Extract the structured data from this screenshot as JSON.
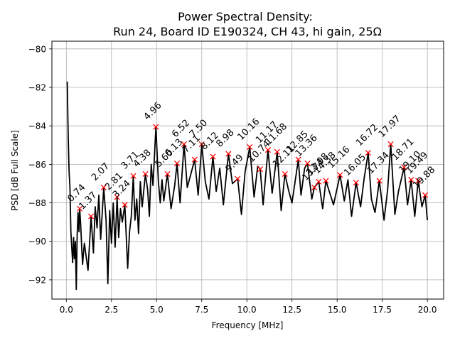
{
  "chart_data": {
    "type": "line",
    "title": "Power Spectral Density:",
    "subtitle": "Run 24, Board ID E190324, CH 43, hi gain, 25Ω",
    "xlabel": "Frequency [MHz]",
    "ylabel": "PSD [dB Full Scale]",
    "xlim": [
      -0.8,
      20.9
    ],
    "ylim": [
      -93.0,
      -79.6
    ],
    "xticks": [
      0.0,
      2.5,
      5.0,
      7.5,
      10.0,
      12.5,
      15.0,
      17.5,
      20.0
    ],
    "xtick_labels": [
      "0.0",
      "2.5",
      "5.0",
      "7.5",
      "10.0",
      "12.5",
      "15.0",
      "17.5",
      "20.0"
    ],
    "yticks": [
      -92,
      -90,
      -88,
      -86,
      -84,
      -82,
      -80
    ],
    "ytick_labels": [
      "−92",
      "−90",
      "−88",
      "−86",
      "−84",
      "−82",
      "−80"
    ],
    "grid": true,
    "line_color": "#000000",
    "marker_color": "#ff0000",
    "series": [
      {
        "x": [
          0.05,
          0.1,
          0.15,
          0.2,
          0.25,
          0.3,
          0.35,
          0.4,
          0.45,
          0.5,
          0.55,
          0.6,
          0.65,
          0.7,
          0.74,
          0.8,
          0.85,
          0.9,
          0.95,
          1.0,
          1.1,
          1.2,
          1.37,
          1.5,
          1.6,
          1.7,
          1.8,
          1.9,
          2.07,
          2.2,
          2.3,
          2.4,
          2.5,
          2.6,
          2.7,
          2.81,
          2.9,
          3.0,
          3.1,
          3.24,
          3.4,
          3.5,
          3.6,
          3.71,
          3.8,
          3.9,
          4.0,
          4.1,
          4.2,
          4.38,
          4.5,
          4.6,
          4.7,
          4.8,
          4.96,
          5.1,
          5.2,
          5.3,
          5.4,
          5.6,
          5.8,
          6.0,
          6.13,
          6.3,
          6.52,
          6.7,
          6.9,
          7.11,
          7.3,
          7.5,
          7.7,
          7.9,
          8.12,
          8.3,
          8.5,
          8.7,
          8.98,
          9.2,
          9.49,
          9.7,
          9.9,
          10.16,
          10.4,
          10.6,
          10.74,
          10.9,
          11.17,
          11.4,
          11.68,
          11.9,
          12.11,
          12.3,
          12.5,
          12.85,
          13.0,
          13.2,
          13.36,
          13.6,
          13.74,
          13.98,
          14.2,
          14.38,
          14.6,
          14.8,
          15.16,
          15.4,
          15.6,
          15.8,
          16.05,
          16.3,
          16.5,
          16.72,
          16.9,
          17.1,
          17.34,
          17.6,
          17.8,
          17.97,
          18.2,
          18.4,
          18.71,
          18.9,
          19.1,
          19.3,
          19.49,
          19.7,
          19.88,
          20.0
        ],
        "y": [
          -81.7,
          -84.5,
          -86.3,
          -87.2,
          -89.5,
          -90.3,
          -91.1,
          -89.8,
          -90.9,
          -90.0,
          -92.5,
          -89.7,
          -88.5,
          -89.5,
          -88.3,
          -89.2,
          -90.3,
          -91.2,
          -90.6,
          -90.1,
          -90.8,
          -91.5,
          -88.7,
          -90.6,
          -88.2,
          -89.3,
          -87.6,
          -89.9,
          -87.2,
          -88.9,
          -92.2,
          -88.4,
          -90.1,
          -88.0,
          -90.3,
          -87.7,
          -89.8,
          -88.3,
          -89.0,
          -88.1,
          -91.4,
          -89.5,
          -88.7,
          -86.6,
          -88.9,
          -87.8,
          -89.6,
          -86.9,
          -88.2,
          -86.5,
          -87.3,
          -88.7,
          -86.0,
          -87.1,
          -84.05,
          -86.9,
          -88.0,
          -86.8,
          -87.9,
          -86.5,
          -88.3,
          -87.1,
          -85.95,
          -88.0,
          -84.95,
          -87.2,
          -86.5,
          -85.75,
          -87.6,
          -84.95,
          -86.9,
          -87.8,
          -85.6,
          -87.4,
          -86.2,
          -88.1,
          -85.45,
          -87.0,
          -86.75,
          -88.6,
          -86.4,
          -85.1,
          -87.7,
          -86.1,
          -86.25,
          -88.1,
          -85.25,
          -87.5,
          -85.35,
          -88.4,
          -86.5,
          -87.3,
          -88.0,
          -85.75,
          -87.6,
          -86.2,
          -85.95,
          -87.8,
          -87.2,
          -86.9,
          -88.3,
          -86.85,
          -87.5,
          -88.1,
          -86.55,
          -87.9,
          -86.8,
          -88.7,
          -86.95,
          -88.2,
          -86.7,
          -85.4,
          -87.8,
          -88.5,
          -86.85,
          -88.9,
          -87.3,
          -84.95,
          -88.6,
          -87.4,
          -86.15,
          -88.1,
          -86.8,
          -88.7,
          -86.85,
          -88.2,
          -87.6,
          -88.9
        ]
      }
    ],
    "peaks": [
      {
        "x": 0.74,
        "y": -88.3,
        "label": "0.74"
      },
      {
        "x": 1.37,
        "y": -88.7,
        "label": "1.37"
      },
      {
        "x": 2.07,
        "y": -87.2,
        "label": "2.07"
      },
      {
        "x": 2.81,
        "y": -87.7,
        "label": "2.81"
      },
      {
        "x": 3.24,
        "y": -88.1,
        "label": "3.24"
      },
      {
        "x": 3.71,
        "y": -86.6,
        "label": "3.71"
      },
      {
        "x": 4.38,
        "y": -86.5,
        "label": "4.38"
      },
      {
        "x": 4.96,
        "y": -84.05,
        "label": "4.96"
      },
      {
        "x": 5.6,
        "y": -86.5,
        "label": "5.60"
      },
      {
        "x": 6.13,
        "y": -85.95,
        "label": "6.13"
      },
      {
        "x": 6.52,
        "y": -84.95,
        "label": "6.52"
      },
      {
        "x": 7.11,
        "y": -85.75,
        "label": "7.11"
      },
      {
        "x": 7.5,
        "y": -84.95,
        "label": "7.50"
      },
      {
        "x": 8.12,
        "y": -85.6,
        "label": "8.12"
      },
      {
        "x": 8.98,
        "y": -85.45,
        "label": "8.98"
      },
      {
        "x": 9.49,
        "y": -86.75,
        "label": "9.49"
      },
      {
        "x": 10.16,
        "y": -85.1,
        "label": "10.16"
      },
      {
        "x": 10.74,
        "y": -86.25,
        "label": "10.74"
      },
      {
        "x": 11.17,
        "y": -85.25,
        "label": "11.17"
      },
      {
        "x": 11.68,
        "y": -85.35,
        "label": "11.68"
      },
      {
        "x": 12.11,
        "y": -86.5,
        "label": "12.11"
      },
      {
        "x": 12.85,
        "y": -85.75,
        "label": "12.85"
      },
      {
        "x": 13.36,
        "y": -85.95,
        "label": "13.36"
      },
      {
        "x": 13.74,
        "y": -87.2,
        "label": "13.74"
      },
      {
        "x": 13.98,
        "y": -86.9,
        "label": "13.98"
      },
      {
        "x": 14.38,
        "y": -86.85,
        "label": "14.38"
      },
      {
        "x": 15.16,
        "y": -86.55,
        "label": "15.16"
      },
      {
        "x": 16.05,
        "y": -86.95,
        "label": "16.05"
      },
      {
        "x": 16.72,
        "y": -85.4,
        "label": "16.72"
      },
      {
        "x": 17.34,
        "y": -86.85,
        "label": "17.34"
      },
      {
        "x": 17.97,
        "y": -84.95,
        "label": "17.97"
      },
      {
        "x": 18.71,
        "y": -86.15,
        "label": "18.71"
      },
      {
        "x": 19.1,
        "y": -86.8,
        "label": "19.10"
      },
      {
        "x": 19.49,
        "y": -86.85,
        "label": "19.49"
      },
      {
        "x": 19.88,
        "y": -87.6,
        "label": "19.88"
      }
    ]
  }
}
